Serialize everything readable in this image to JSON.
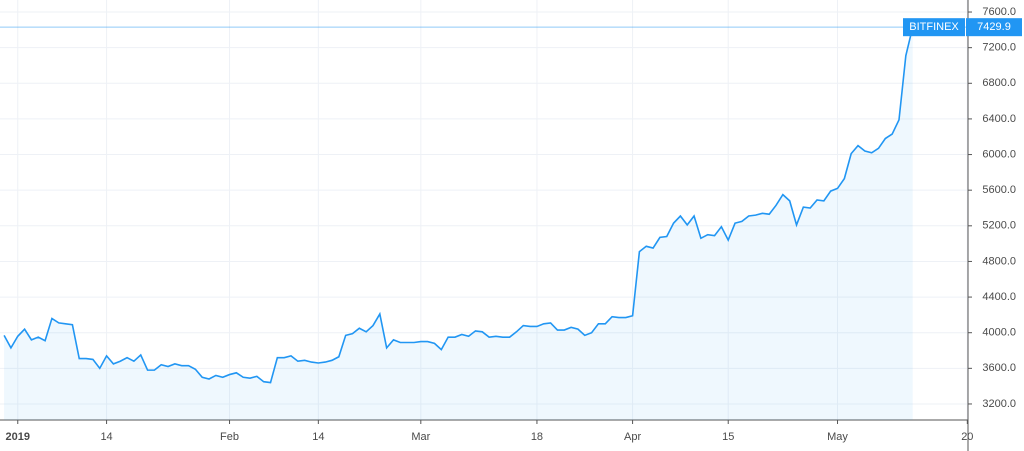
{
  "chart_data": {
    "type": "line",
    "x": [
      -2,
      -1,
      0,
      1,
      2,
      3,
      4,
      5,
      6,
      7,
      8,
      9,
      10,
      11,
      12,
      13,
      14,
      15,
      16,
      17,
      18,
      19,
      20,
      21,
      22,
      23,
      24,
      25,
      26,
      27,
      28,
      29,
      30,
      31,
      32,
      33,
      34,
      35,
      36,
      37,
      38,
      39,
      40,
      41,
      42,
      43,
      44,
      45,
      46,
      47,
      48,
      49,
      50,
      51,
      52,
      53,
      54,
      55,
      56,
      57,
      58,
      59,
      60,
      61,
      62,
      63,
      64,
      65,
      66,
      67,
      68,
      69,
      70,
      71,
      72,
      73,
      74,
      75,
      76,
      77,
      78,
      79,
      80,
      81,
      82,
      83,
      84,
      85,
      86,
      87,
      88,
      89,
      90,
      91,
      92,
      93,
      94,
      95,
      96,
      97,
      98,
      99,
      100,
      101,
      102,
      103,
      104,
      105,
      106,
      107,
      108,
      109,
      110,
      111,
      112,
      113,
      114,
      115,
      116,
      117,
      118,
      119,
      120,
      121,
      122,
      123,
      124,
      125,
      126,
      127,
      128,
      129,
      130,
      131
    ],
    "series": [
      {
        "name": "BITFINEX",
        "color": "#2196f3",
        "values": [
          3970,
          3830,
          3960,
          4040,
          3920,
          3950,
          3910,
          4160,
          4110,
          4100,
          4090,
          3710,
          3710,
          3700,
          3600,
          3740,
          3650,
          3680,
          3720,
          3680,
          3750,
          3580,
          3580,
          3640,
          3620,
          3650,
          3630,
          3630,
          3590,
          3500,
          3480,
          3520,
          3500,
          3530,
          3550,
          3500,
          3490,
          3510,
          3450,
          3440,
          3720,
          3720,
          3740,
          3680,
          3690,
          3670,
          3660,
          3670,
          3690,
          3730,
          3970,
          3990,
          4050,
          4010,
          4080,
          4210,
          3830,
          3920,
          3890,
          3890,
          3890,
          3900,
          3900,
          3880,
          3810,
          3950,
          3950,
          3980,
          3960,
          4020,
          4010,
          3950,
          3960,
          3950,
          3950,
          4010,
          4080,
          4070,
          4070,
          4100,
          4110,
          4030,
          4030,
          4060,
          4040,
          3970,
          4000,
          4100,
          4100,
          4180,
          4170,
          4170,
          4190,
          4910,
          4970,
          4950,
          5070,
          5080,
          5230,
          5310,
          5210,
          5310,
          5060,
          5100,
          5090,
          5190,
          5040,
          5230,
          5250,
          5310,
          5320,
          5340,
          5330,
          5430,
          5550,
          5480,
          5210,
          5410,
          5400,
          5490,
          5480,
          5590,
          5620,
          5730,
          6010,
          6100,
          6040,
          6020,
          6070,
          6180,
          6230,
          6390,
          7110,
          7429.9
        ]
      }
    ],
    "xlim": [
      -2.6,
      139.1
    ],
    "xticks": [
      {
        "value": 0,
        "label": "2019"
      },
      {
        "value": 13,
        "label": "14"
      },
      {
        "value": 31,
        "label": "Feb"
      },
      {
        "value": 44,
        "label": "14"
      },
      {
        "value": 59,
        "label": "Mar"
      },
      {
        "value": 76,
        "label": "18"
      },
      {
        "value": 90,
        "label": "Apr"
      },
      {
        "value": 104,
        "label": "15"
      },
      {
        "value": 120,
        "label": "May"
      },
      {
        "value": 139,
        "label": "20"
      }
    ],
    "ylim": [
      3020,
      7735
    ],
    "yticks": [
      {
        "value": 3200,
        "label": "3200.0"
      },
      {
        "value": 3600,
        "label": "3600.0"
      },
      {
        "value": 4000,
        "label": "4000.0"
      },
      {
        "value": 4400,
        "label": "4400.0"
      },
      {
        "value": 4800,
        "label": "4800.0"
      },
      {
        "value": 5200,
        "label": "5200.0"
      },
      {
        "value": 5600,
        "label": "5600.0"
      },
      {
        "value": 6000,
        "label": "6000.0"
      },
      {
        "value": 6400,
        "label": "6400.0"
      },
      {
        "value": 6800,
        "label": "6800.0"
      },
      {
        "value": 7200,
        "label": "7200.0"
      },
      {
        "value": 7600,
        "label": "7600.0"
      }
    ],
    "grid": true
  }
}
